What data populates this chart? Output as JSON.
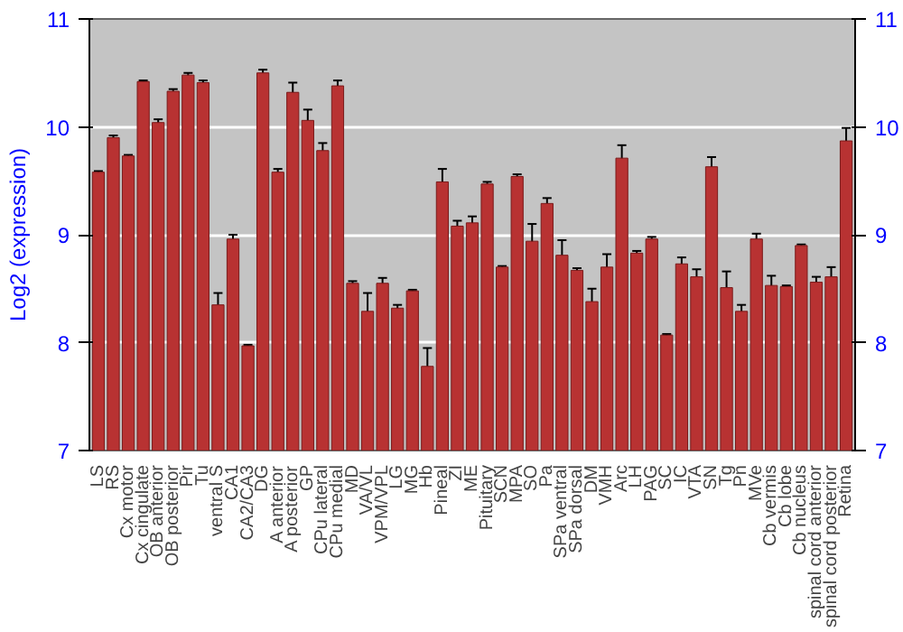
{
  "chart_data": {
    "type": "bar",
    "ylabel": "Log2 (expression)",
    "categories": [
      "LS",
      "RS",
      "Cx motor",
      "Cx cingulate",
      "OB anterior",
      "OB posterior",
      "Pir",
      "Tu",
      "ventral S",
      "CA1",
      "CA2/CA3",
      "DG",
      "A anterior",
      "A posterior",
      "GP",
      "CPu lateral",
      "CPu medial",
      "MD",
      "VA/VL",
      "VPM/VPL",
      "LG",
      "MG",
      "Hb",
      "Pineal",
      "ZI",
      "ME",
      "Pituitary",
      "SCN",
      "MPA",
      "SO",
      "Pa",
      "SPa ventral",
      "SPa dorsal",
      "DM",
      "VMH",
      "Arc",
      "LH",
      "PAG",
      "SC",
      "IC",
      "VTA",
      "SN",
      "Tg",
      "Pn",
      "MVe",
      "Cb vermis",
      "Cb lobe",
      "Cb nucleus",
      "spinal cord anterior",
      "spinal cord posterior",
      "Retina"
    ],
    "values": [
      9.58,
      9.9,
      9.73,
      10.42,
      10.04,
      10.33,
      10.48,
      10.41,
      8.35,
      8.96,
      7.97,
      10.5,
      9.58,
      10.32,
      10.06,
      9.78,
      10.38,
      8.55,
      8.29,
      8.55,
      8.32,
      8.48,
      7.78,
      9.49,
      9.08,
      9.11,
      9.47,
      8.7,
      9.54,
      8.94,
      9.29,
      8.81,
      8.67,
      8.38,
      8.7,
      9.71,
      8.83,
      8.96,
      8.07,
      8.73,
      8.61,
      9.63,
      8.51,
      8.29,
      8.96,
      8.53,
      8.52,
      8.9,
      8.56,
      8.61,
      9.87
    ],
    "errors": [
      0.01,
      0.02,
      0.01,
      0.01,
      0.03,
      0.02,
      0.02,
      0.02,
      0.11,
      0.04,
      0.01,
      0.03,
      0.03,
      0.09,
      0.1,
      0.07,
      0.05,
      0.02,
      0.17,
      0.05,
      0.03,
      0.01,
      0.17,
      0.12,
      0.05,
      0.06,
      0.02,
      0.01,
      0.02,
      0.16,
      0.05,
      0.14,
      0.02,
      0.12,
      0.12,
      0.12,
      0.02,
      0.02,
      0.01,
      0.06,
      0.07,
      0.09,
      0.15,
      0.06,
      0.05,
      0.09,
      0.01,
      0.01,
      0.05,
      0.09,
      0.12
    ],
    "color": "#b83232",
    "ylim": [
      7,
      11
    ],
    "yticks": [
      7,
      8,
      9,
      10,
      11
    ],
    "y2lim": [
      7,
      11
    ],
    "y2ticks": [
      7,
      8,
      9,
      10,
      11
    ],
    "grid": "y"
  }
}
